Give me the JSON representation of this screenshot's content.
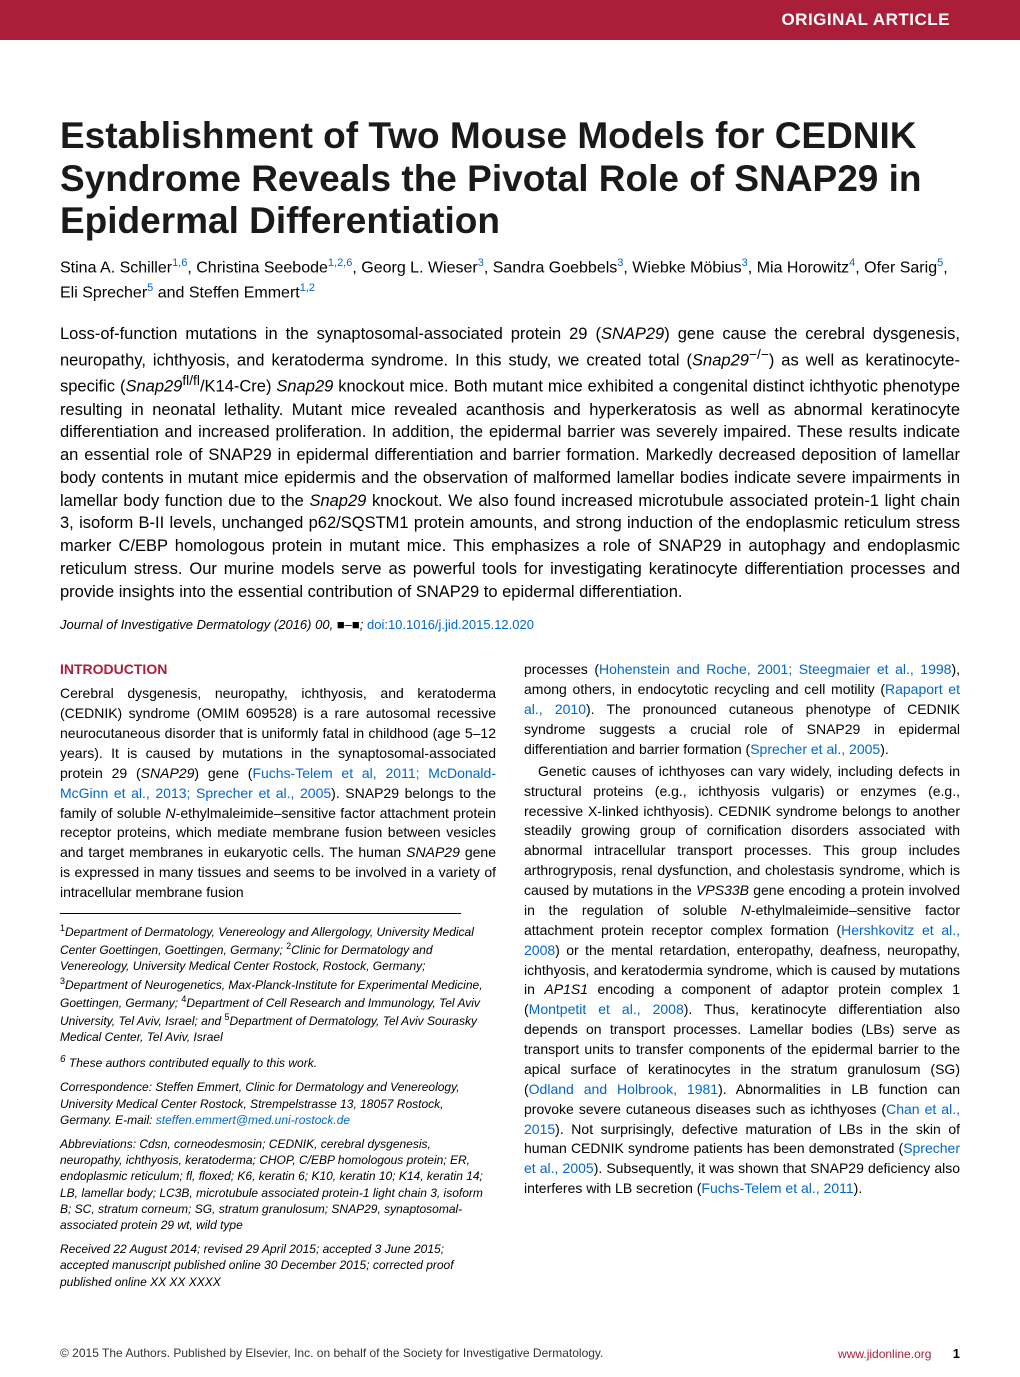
{
  "header": {
    "label": "ORIGINAL ARTICLE"
  },
  "title": "Establishment of Two Mouse Models for CEDNIK Syndrome Reveals the Pivotal Role of SNAP29 in Epidermal Differentiation",
  "authors_html": "Stina A. Schiller<sup>1,6</sup>, Christina Seebode<sup>1,2,6</sup>, Georg L. Wieser<sup>3</sup>, Sandra Goebbels<sup>3</sup>, Wiebke Möbius<sup>3</sup>, Mia Horowitz<sup>4</sup>, Ofer Sarig<sup>5</sup>, Eli Sprecher<sup>5</sup> and Steffen Emmert<sup>1,2</sup>",
  "abstract_html": "Loss-of-function mutations in the synaptosomal-associated protein 29 (<em>SNAP29</em>) gene cause the cerebral dysgenesis, neuropathy, ichthyosis, and keratoderma syndrome. In this study, we created total (<em>Snap29</em><sup>&minus;/&minus;</sup>) as well as keratinocyte-specific (<em>Snap29</em><sup>fl/fl</sup>/K14-Cre) <em>Snap29</em> knockout mice. Both mutant mice exhibited a congenital distinct ichthyotic phenotype resulting in neonatal lethality. Mutant mice revealed acanthosis and hyperkeratosis as well as abnormal keratinocyte differentiation and increased proliferation. In addition, the epidermal barrier was severely impaired. These results indicate an essential role of SNAP29 in epidermal differentiation and barrier formation. Markedly decreased deposition of lamellar body contents in mutant mice epidermis and the observation of malformed lamellar bodies indicate severe impairments in lamellar body function due to the <em>Snap29</em> knockout. We also found increased microtubule associated protein-1 light chain 3, isoform B-II levels, unchanged p62/SQSTM1 protein amounts, and strong induction of the endoplasmic reticulum stress marker C/EBP homologous protein in mutant mice. This emphasizes a role of SNAP29 in autophagy and endoplasmic reticulum stress. Our murine models serve as powerful tools for investigating keratinocyte differentiation processes and provide insights into the essential contribution of SNAP29 to epidermal differentiation.",
  "citation": {
    "journal": "Journal of Investigative Dermatology",
    "year": "(2016)",
    "vol": "00,",
    "pages": "■–■;",
    "doi": "doi:10.1016/j.jid.2015.12.020"
  },
  "intro_head": "INTRODUCTION",
  "col1_p1_html": "Cerebral dysgenesis, neuropathy, ichthyosis, and keratoderma (CEDNIK) syndrome (OMIM 609528) is a rare autosomal recessive neurocutaneous disorder that is uniformly fatal in childhood (age 5–12 years). It is caused by mutations in the synaptosomal-associated protein 29 (<em>SNAP29</em>) gene (<span class='link'>Fuchs-Telem et al, 2011; McDonald-McGinn et al., 2013; Sprecher et al., 2005</span>). SNAP29 belongs to the family of soluble <em>N</em>-ethylmaleimide–sensitive factor attachment protein receptor proteins, which mediate membrane fusion between vesicles and target membranes in eukaryotic cells. The human <em>SNAP29</em> gene is expressed in many tissues and seems to be involved in a variety of intracellular membrane fusion",
  "affil_html": "<sup>1</sup>Department of Dermatology, Venereology and Allergology, University Medical Center Goettingen, Goettingen, Germany; <sup>2</sup>Clinic for Dermatology and Venereology, University Medical Center Rostock, Rostock, Germany; <sup>3</sup>Department of Neurogenetics, Max-Planck-Institute for Experimental Medicine, Goettingen, Germany; <sup>4</sup>Department of Cell Research and Immunology, Tel Aviv University, Tel Aviv, Israel; and <sup>5</sup>Department of Dermatology, Tel Aviv Sourasky Medical Center, Tel Aviv, Israel",
  "equal_note": "<sup>6</sup> These authors contributed equally to this work.",
  "corr_html": "Correspondence: Steffen Emmert, Clinic for Dermatology and Venereology, University Medical Center Rostock, Strempelstrasse 13, 18057 Rostock, Germany. E-mail: <span class='email'>steffen.emmert@med.uni-rostock.de</span>",
  "abbrev_html": "Abbreviations: Cdsn, corneodesmosin; CEDNIK, cerebral dysgenesis, neuropathy, ichthyosis, keratoderma; CHOP, C/EBP homologous protein; ER, endoplasmic reticulum; fl, floxed; K6, keratin 6; K10, keratin 10; K14, keratin 14; LB, lamellar body; LC3B, microtubule associated protein-1 light chain 3, isoform B; SC, stratum corneum; SG, stratum granulosum; SNAP29, synaptosomal-associated protein 29 wt, wild type",
  "received": "Received 22 August 2014; revised 29 April 2015; accepted 3 June 2015; accepted manuscript published online 30 December 2015; corrected proof published online XX XX XXXX",
  "col2_p1_html": "processes (<span class='link'>Hohenstein and Roche, 2001; Steegmaier et al., 1998</span>), among others, in endocytotic recycling and cell motility (<span class='link'>Rapaport et al., 2010</span>). The pronounced cutaneous phenotype of CEDNIK syndrome suggests a crucial role of SNAP29 in epidermal differentiation and barrier formation (<span class='link'>Sprecher et al., 2005</span>).",
  "col2_p2_html": "Genetic causes of ichthyoses can vary widely, including defects in structural proteins (e.g., ichthyosis vulgaris) or enzymes (e.g., recessive X-linked ichthyosis). CEDNIK syndrome belongs to another steadily growing group of cornification disorders associated with abnormal intracellular transport processes. This group includes arthrogryposis, renal dysfunction, and cholestasis syndrome, which is caused by mutations in the <em>VPS33B</em> gene encoding a protein involved in the regulation of soluble <em>N</em>-ethylmaleimide–sensitive factor attachment protein receptor complex formation (<span class='link'>Hershkovitz et al., 2008</span>) or the mental retardation, enteropathy, deafness, neuropathy, ichthyosis, and keratodermia syndrome, which is caused by mutations in <em>AP1S1</em> encoding a component of adaptor protein complex 1 (<span class='link'>Montpetit et al., 2008</span>). Thus, keratinocyte differentiation also depends on transport processes. Lamellar bodies (LBs) serve as transport units to transfer components of the epidermal barrier to the apical surface of keratinocytes in the stratum granulosum (SG) (<span class='link'>Odland and Holbrook, 1981</span>). Abnormalities in LB function can provoke severe cutaneous diseases such as ichthyoses (<span class='link'>Chan et al., 2015</span>). Not surprisingly, defective maturation of LBs in the skin of human CEDNIK syndrome patients has been demonstrated (<span class='link'>Sprecher et al., 2005</span>). Subsequently, it was shown that SNAP29 deficiency also interferes with LB secretion (<span class='link'>Fuchs-Telem et al., 2011</span>).",
  "footer": {
    "left": "© 2015 The Authors. Published by Elsevier, Inc. on behalf of the Society for Investigative Dermatology.",
    "right": "www.jidonline.org",
    "page": "1"
  },
  "colors": {
    "brand": "#ab1e3a",
    "link": "#0066cc",
    "text": "#000000",
    "bg": "#ffffff"
  }
}
